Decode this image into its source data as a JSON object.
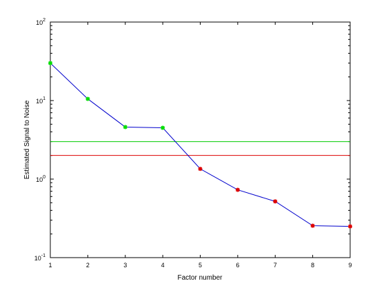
{
  "chart_data": {
    "type": "line",
    "title": "",
    "xlabel": "Factor number",
    "ylabel": "Estimated Signal to Noise",
    "xlim": [
      1,
      9
    ],
    "ylim": [
      0.1,
      100
    ],
    "yscale": "log",
    "grid": false,
    "x_ticks": [
      "1",
      "2",
      "3",
      "4",
      "5",
      "6",
      "7",
      "8",
      "9"
    ],
    "y_ticks": [
      {
        "base": "10",
        "exp": "-1",
        "value": 0.1
      },
      {
        "base": "10",
        "exp": "0",
        "value": 1
      },
      {
        "base": "10",
        "exp": "1",
        "value": 10
      },
      {
        "base": "10",
        "exp": "2",
        "value": 100
      }
    ],
    "series": [
      {
        "line_color": "#0000cc",
        "x": [
          1,
          2,
          3,
          4,
          5,
          6,
          7,
          8,
          9
        ],
        "y": [
          30,
          10.5,
          4.6,
          4.5,
          1.35,
          0.73,
          0.52,
          0.255,
          0.25
        ],
        "marker_colors": [
          "#00dd00",
          "#00dd00",
          "#00dd00",
          "#00dd00",
          "#dd0000",
          "#dd0000",
          "#dd0000",
          "#dd0000",
          "#dd0000"
        ]
      }
    ],
    "reference_lines": [
      {
        "y": 3.0,
        "color": "#00cc00"
      },
      {
        "y": 2.0,
        "color": "#dd0000"
      }
    ]
  }
}
